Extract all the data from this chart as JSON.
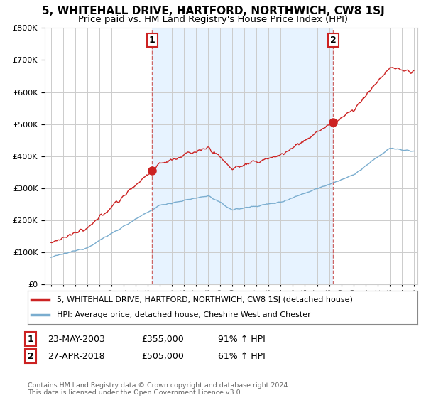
{
  "title": "5, WHITEHALL DRIVE, HARTFORD, NORTHWICH, CW8 1SJ",
  "subtitle": "Price paid vs. HM Land Registry's House Price Index (HPI)",
  "ylim": [
    0,
    800000
  ],
  "xlim_start": 1994.5,
  "xlim_end": 2025.3,
  "sale1_year": 2003.38,
  "sale1_price": 355000,
  "sale1_label": "1",
  "sale1_date": "23-MAY-2003",
  "sale1_amount": "£355,000",
  "sale1_hpi_pct": "91% ↑ HPI",
  "sale2_year": 2018.33,
  "sale2_price": 505000,
  "sale2_label": "2",
  "sale2_date": "27-APR-2018",
  "sale2_amount": "£505,000",
  "sale2_hpi_pct": "61% ↑ HPI",
  "line_color_red": "#cc2222",
  "line_color_blue": "#7aadcf",
  "vline_color": "#cc6666",
  "grid_color": "#cccccc",
  "shade_color": "#ddeeff",
  "legend_label_red": "5, WHITEHALL DRIVE, HARTFORD, NORTHWICH, CW8 1SJ (detached house)",
  "legend_label_blue": "HPI: Average price, detached house, Cheshire West and Chester",
  "footnote": "Contains HM Land Registry data © Crown copyright and database right 2024.\nThis data is licensed under the Open Government Licence v3.0.",
  "background_color": "#ffffff",
  "title_fontsize": 11,
  "subtitle_fontsize": 9.5,
  "tick_fontsize": 8,
  "legend_fontsize": 8
}
